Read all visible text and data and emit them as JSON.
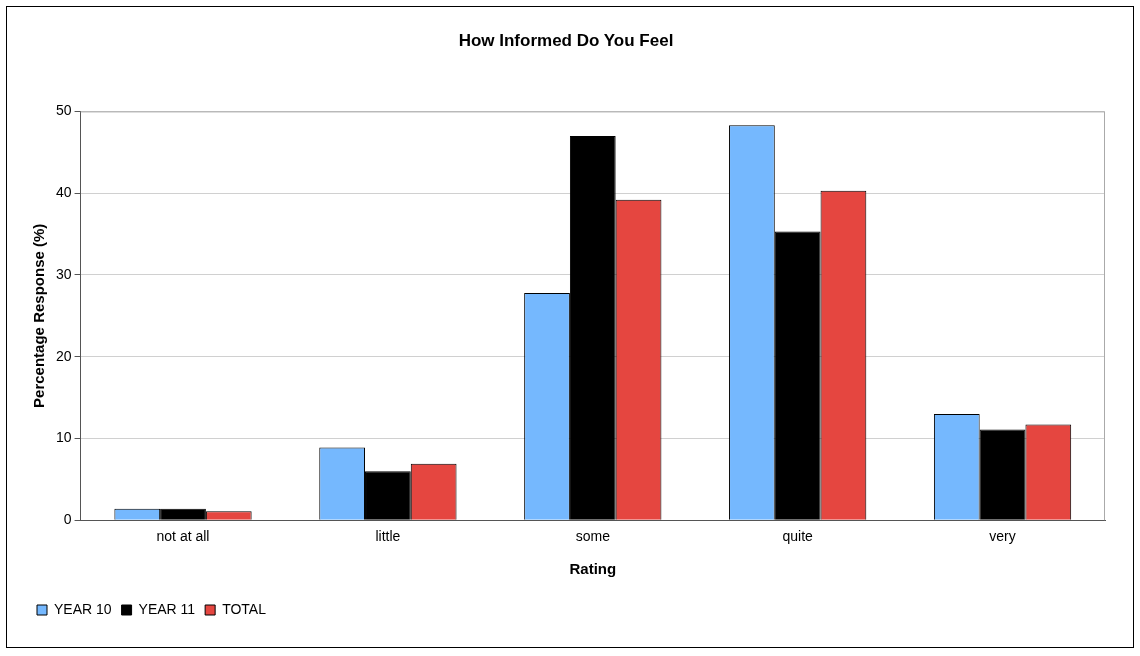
{
  "chart_data": {
    "type": "bar",
    "title": "How Informed Do You Feel",
    "xlabel": "Rating",
    "ylabel": "Percentage Response (%)",
    "categories": [
      "not at all",
      "little",
      "some",
      "quite",
      "very"
    ],
    "series": [
      {
        "name": "YEAR 10",
        "color": "#75b8fe",
        "values": [
          1.4,
          8.9,
          27.8,
          48.3,
          13.0
        ]
      },
      {
        "name": "YEAR 11",
        "color": "#000000",
        "values": [
          1.4,
          6.0,
          47.0,
          35.3,
          11.1
        ]
      },
      {
        "name": "TOTAL",
        "color": "#e54640",
        "values": [
          1.1,
          6.9,
          39.2,
          40.3,
          11.7
        ]
      }
    ],
    "ylim": [
      0,
      50
    ],
    "yticks": [
      0,
      10,
      20,
      30,
      40,
      50
    ],
    "grid": "y",
    "legend": "bottom left"
  }
}
